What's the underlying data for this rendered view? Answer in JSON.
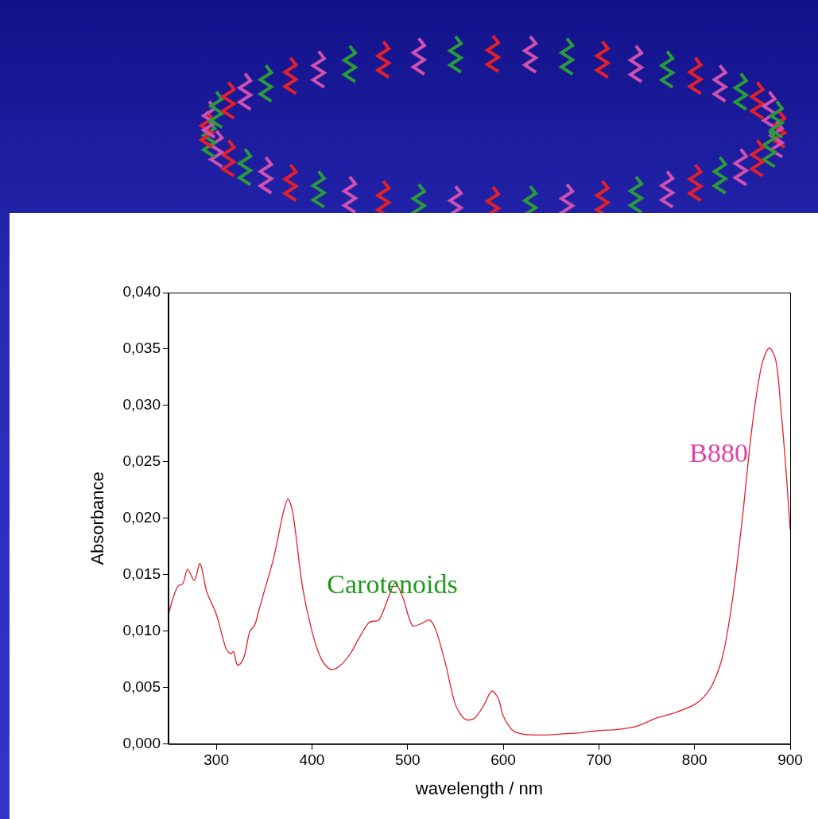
{
  "chart_data": {
    "type": "line",
    "x_label": "wavelength / nm",
    "y_label": "Absorbance",
    "color": "#e3202a",
    "grid": false,
    "xlim": [
      250,
      900
    ],
    "xticks": [
      300,
      400,
      500,
      600,
      700,
      800,
      900
    ],
    "ylim": [
      0,
      0.04
    ],
    "yticks": [
      {
        "value": 0,
        "label": "0,000"
      },
      {
        "value": 0.005,
        "label": "0,005"
      },
      {
        "value": 0.01,
        "label": "0,010"
      },
      {
        "value": 0.015,
        "label": "0,015"
      },
      {
        "value": 0.02,
        "label": "0,020"
      },
      {
        "value": 0.025,
        "label": "0,025"
      },
      {
        "value": 0.03,
        "label": "0,030"
      },
      {
        "value": 0.035,
        "label": "0,035"
      },
      {
        "value": 0.04,
        "label": "0,040"
      }
    ],
    "annotations": [
      {
        "text": "Carotenoids",
        "color": "#1e9a1e"
      },
      {
        "text": "B880",
        "color": "#e040a8"
      }
    ],
    "x": [
      250,
      255,
      260,
      265,
      270,
      277,
      283,
      290,
      300,
      310,
      315,
      318,
      322,
      326,
      330,
      335,
      340,
      345,
      350,
      360,
      370,
      375,
      380,
      390,
      400,
      410,
      420,
      430,
      440,
      450,
      460,
      470,
      480,
      487,
      495,
      505,
      515,
      523,
      530,
      540,
      550,
      560,
      570,
      580,
      588,
      595,
      600,
      610,
      620,
      640,
      660,
      680,
      700,
      720,
      740,
      760,
      780,
      800,
      810,
      820,
      830,
      840,
      850,
      860,
      870,
      878,
      885,
      890,
      895,
      900
    ],
    "values": [
      0.0115,
      0.013,
      0.014,
      0.0142,
      0.0155,
      0.0145,
      0.016,
      0.0135,
      0.0115,
      0.0085,
      0.008,
      0.0082,
      0.007,
      0.0072,
      0.008,
      0.01,
      0.0105,
      0.012,
      0.0135,
      0.0165,
      0.0205,
      0.0217,
      0.0205,
      0.014,
      0.01,
      0.0075,
      0.0066,
      0.007,
      0.008,
      0.0095,
      0.0108,
      0.011,
      0.013,
      0.0143,
      0.013,
      0.0105,
      0.0107,
      0.011,
      0.01,
      0.007,
      0.0035,
      0.0022,
      0.0023,
      0.0035,
      0.0047,
      0.004,
      0.0025,
      0.0012,
      0.0009,
      0.0008,
      0.0009,
      0.001,
      0.0012,
      0.0013,
      0.0016,
      0.0023,
      0.0028,
      0.0035,
      0.0042,
      0.0055,
      0.008,
      0.013,
      0.02,
      0.028,
      0.0335,
      0.0351,
      0.034,
      0.03,
      0.025,
      0.019
    ]
  }
}
